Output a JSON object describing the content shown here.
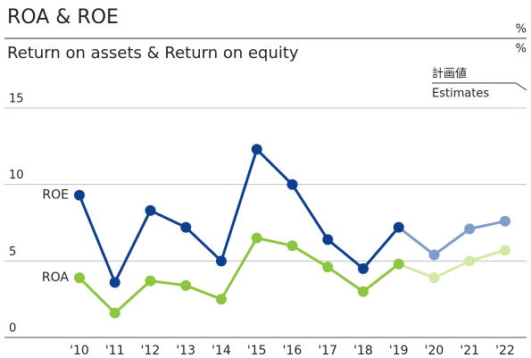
{
  "chart_data": {
    "type": "line",
    "title": "ROA & ROE",
    "subtitle": "Return on assets & Return on equity",
    "units": [
      "%",
      "%"
    ],
    "estimate_label": [
      "計画値",
      "Estimates"
    ],
    "estimate_start": "'19",
    "categories": [
      "'10",
      "'11",
      "'12",
      "'13",
      "'14",
      "'15",
      "'16",
      "'17",
      "'18",
      "'19",
      "'20",
      "'21",
      "'22"
    ],
    "series": [
      {
        "name": "ROE",
        "color": "#0e3f8f",
        "estimate_color": "#7f9ccc",
        "values": [
          9.3,
          3.6,
          8.3,
          7.2,
          5.0,
          12.3,
          10.0,
          6.4,
          4.5,
          7.2,
          5.4,
          7.1,
          7.6
        ]
      },
      {
        "name": "ROA",
        "color": "#8cc63f",
        "estimate_color": "#d4e8a6",
        "values": [
          3.9,
          1.6,
          3.7,
          3.4,
          2.5,
          6.5,
          6.0,
          4.6,
          3.0,
          4.8,
          3.9,
          5.0,
          5.7
        ]
      }
    ],
    "ylim": [
      0,
      15
    ],
    "yticks": [
      0,
      5,
      10,
      15
    ],
    "grid": true
  }
}
